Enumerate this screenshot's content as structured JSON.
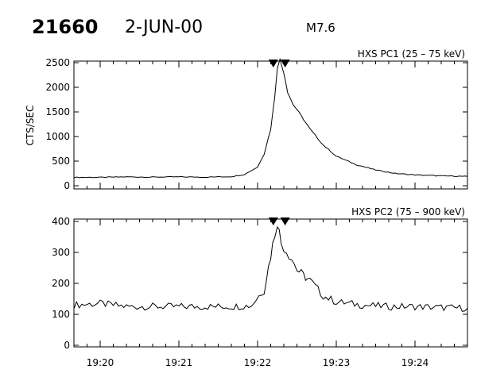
{
  "header": {
    "event_id": "21660",
    "date": "2-JUN-00",
    "flare_class": "M7.6"
  },
  "chart_data": [
    {
      "type": "line",
      "title": "HXS PC1 (25 – 75 keV)",
      "xlabel": "",
      "ylabel": "CTS/SEC",
      "xlim": [
        "19:19:40",
        "19:24:40"
      ],
      "ylim": [
        0,
        2500
      ],
      "yticks": [
        0,
        500,
        1000,
        1500,
        2000,
        2500
      ],
      "x_tick_labels": [
        "19:20",
        "19:21",
        "19:22",
        "19:23",
        "19:24"
      ],
      "markers": [
        "19:22:12",
        "19:22:21"
      ],
      "grid": false,
      "series": [
        {
          "x": [
            "19:19:40",
            "19:20:00",
            "19:20:20",
            "19:20:40",
            "19:21:00",
            "19:21:20",
            "19:21:40",
            "19:21:50",
            "19:22:00",
            "19:22:05",
            "19:22:10",
            "19:22:13",
            "19:22:15",
            "19:22:17",
            "19:22:20",
            "19:22:23",
            "19:22:27",
            "19:22:30",
            "19:22:35",
            "19:22:40",
            "19:22:50",
            "19:23:00",
            "19:23:15",
            "19:23:30",
            "19:23:45",
            "19:24:00",
            "19:24:20",
            "19:24:40"
          ],
          "y": [
            170,
            170,
            180,
            175,
            180,
            175,
            185,
            230,
            380,
            650,
            1150,
            1800,
            2400,
            2560,
            2300,
            1900,
            1650,
            1550,
            1350,
            1150,
            830,
            600,
            430,
            320,
            250,
            220,
            200,
            190
          ]
        }
      ]
    },
    {
      "type": "line",
      "title": "HXS PC2 (75 – 900 keV)",
      "xlabel": "",
      "ylabel": "",
      "xlim": [
        "19:19:40",
        "19:24:40"
      ],
      "ylim": [
        0,
        400
      ],
      "yticks": [
        0,
        100,
        200,
        300,
        400
      ],
      "x_tick_labels": [
        "19:20",
        "19:21",
        "19:22",
        "19:23",
        "19:24"
      ],
      "markers": [
        "19:22:12",
        "19:22:21"
      ],
      "grid": false,
      "series": [
        {
          "x": [
            "19:19:40",
            "19:20:00",
            "19:20:20",
            "19:20:40",
            "19:21:00",
            "19:21:20",
            "19:21:40",
            "19:21:55",
            "19:22:05",
            "19:22:10",
            "19:22:13",
            "19:22:15",
            "19:22:18",
            "19:22:22",
            "19:22:26",
            "19:22:30",
            "19:22:35",
            "19:22:40",
            "19:22:50",
            "19:23:00",
            "19:23:20",
            "19:23:40",
            "19:24:00",
            "19:24:20",
            "19:24:40"
          ],
          "y": [
            130,
            135,
            125,
            125,
            125,
            125,
            125,
            128,
            180,
            290,
            360,
            400,
            330,
            305,
            280,
            245,
            225,
            210,
            160,
            140,
            130,
            125,
            125,
            122,
            120
          ]
        }
      ]
    }
  ]
}
